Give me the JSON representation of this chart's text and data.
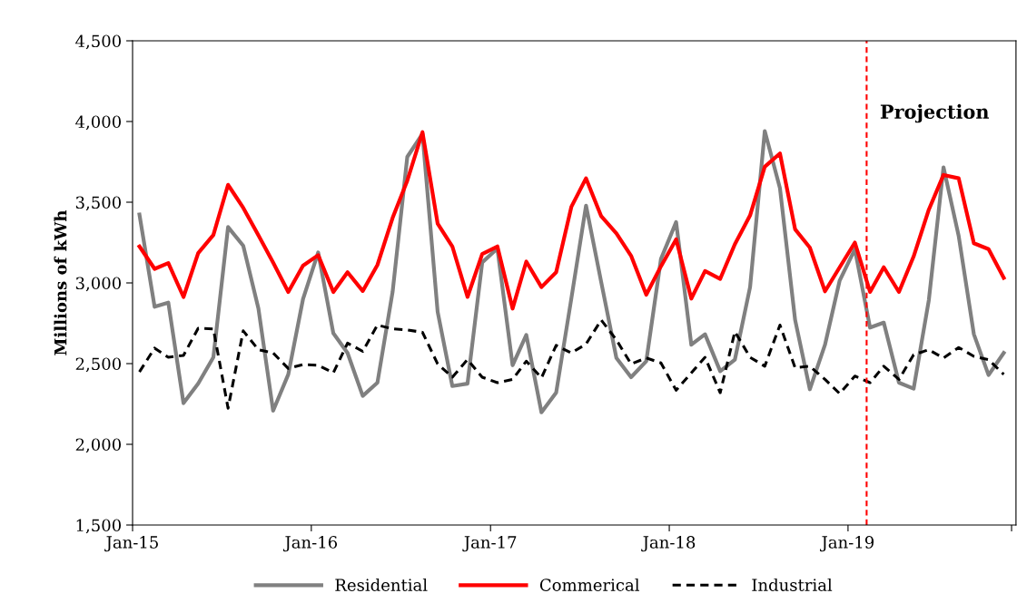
{
  "chart_data": {
    "type": "line",
    "ylabel": "Millions of kWh",
    "x": [
      "2015-01-15",
      "2015-02-15",
      "2015-03-15",
      "2015-04-15",
      "2015-05-15",
      "2015-06-15",
      "2015-07-15",
      "2015-08-15",
      "2015-09-15",
      "2015-10-15",
      "2015-11-15",
      "2015-12-15",
      "2016-01-15",
      "2016-02-15",
      "2016-03-15",
      "2016-04-15",
      "2016-05-15",
      "2016-06-15",
      "2016-07-15",
      "2016-08-15",
      "2016-09-15",
      "2016-10-15",
      "2016-11-15",
      "2016-12-15",
      "2017-01-15",
      "2017-02-15",
      "2017-03-15",
      "2017-04-15",
      "2017-05-15",
      "2017-06-15",
      "2017-07-15",
      "2017-08-15",
      "2017-09-15",
      "2017-10-15",
      "2017-11-15",
      "2017-12-15",
      "2018-01-15",
      "2018-02-15",
      "2018-03-15",
      "2018-04-15",
      "2018-05-15",
      "2018-06-15",
      "2018-07-15",
      "2018-08-15",
      "2018-09-15",
      "2018-10-15",
      "2018-11-15",
      "2018-12-15",
      "2019-01-15",
      "2019-02-15",
      "2019-03-15",
      "2019-04-15",
      "2019-05-15",
      "2019-06-15",
      "2019-07-15",
      "2019-08-15",
      "2019-09-15",
      "2019-10-15",
      "2019-11-15"
    ],
    "series": [
      {
        "name": "Residential",
        "color": "#808080",
        "line_style": "solid",
        "values": [
          3424,
          2852,
          2878,
          2255,
          2376,
          2539,
          3346,
          3230,
          2841,
          2208,
          2433,
          2899,
          3189,
          2688,
          2566,
          2300,
          2382,
          2944,
          3781,
          3924,
          2821,
          2361,
          2376,
          3127,
          3213,
          2490,
          2678,
          2198,
          2320,
          2903,
          3479,
          3005,
          2535,
          2416,
          2515,
          3148,
          3377,
          2617,
          2682,
          2453,
          2525,
          2974,
          3941,
          3587,
          2770,
          2341,
          2617,
          3015,
          3209,
          2723,
          2754,
          2382,
          2345,
          2893,
          3716,
          3291,
          2682,
          2429,
          2566
        ]
      },
      {
        "name": "Commerical",
        "color": "#ff0000",
        "line_style": "solid",
        "values": [
          3226,
          3087,
          3123,
          2913,
          3185,
          3297,
          3608,
          3465,
          3295,
          3127,
          2944,
          3107,
          3172,
          2944,
          3066,
          2950,
          3111,
          3403,
          3634,
          3934,
          3367,
          3226,
          2913,
          3179,
          3226,
          2841,
          3132,
          2974,
          3066,
          3471,
          3648,
          3413,
          3307,
          3168,
          2927,
          3103,
          3270,
          2903,
          3074,
          3025,
          3240,
          3418,
          3720,
          3802,
          3332,
          3219,
          2948,
          3097,
          3250,
          2944,
          3097,
          2944,
          3164,
          3454,
          3669,
          3648,
          3246,
          3209,
          3031
        ]
      },
      {
        "name": "Industrial",
        "color": "#000000",
        "line_style": "dashed",
        "values": [
          2449,
          2596,
          2539,
          2551,
          2719,
          2715,
          2224,
          2703,
          2586,
          2566,
          2470,
          2494,
          2490,
          2443,
          2627,
          2576,
          2739,
          2715,
          2709,
          2694,
          2498,
          2416,
          2525,
          2416,
          2382,
          2402,
          2515,
          2412,
          2613,
          2566,
          2621,
          2770,
          2647,
          2498,
          2535,
          2504,
          2335,
          2443,
          2539,
          2320,
          2698,
          2539,
          2484,
          2739,
          2474,
          2484,
          2402,
          2314,
          2423,
          2382,
          2484,
          2402,
          2555,
          2586,
          2535,
          2600,
          2545,
          2525,
          2433
        ]
      }
    ],
    "xlim": [
      "2015-01-01",
      "2019-12-10"
    ],
    "xticks": [
      {
        "value": "2015-01-01",
        "label": "Jan-15"
      },
      {
        "value": "2016-01-01",
        "label": "Jan-16"
      },
      {
        "value": "2017-01-01",
        "label": "Jan-17"
      },
      {
        "value": "2018-01-01",
        "label": "Jan-18"
      },
      {
        "value": "2019-01-01",
        "label": "Jan-19"
      },
      {
        "value": "2019-12-01",
        "label": null
      }
    ],
    "ylim": [
      1500,
      4500
    ],
    "yticks": [
      {
        "value": 1500,
        "label": "1,500"
      },
      {
        "value": 2000,
        "label": "2,000"
      },
      {
        "value": 2500,
        "label": "2,500"
      },
      {
        "value": 3000,
        "label": "3,000"
      },
      {
        "value": 3500,
        "label": "3,500"
      },
      {
        "value": 4000,
        "label": "4,000"
      },
      {
        "value": 4500,
        "label": "4,500"
      }
    ],
    "ref_lines": [
      {
        "axis": "x",
        "value": "2019-02-08",
        "label": "Projection",
        "color": "#ff0000",
        "line_style": "dashed"
      }
    ],
    "grid": false,
    "legend": "bottom",
    "marker": "none"
  }
}
